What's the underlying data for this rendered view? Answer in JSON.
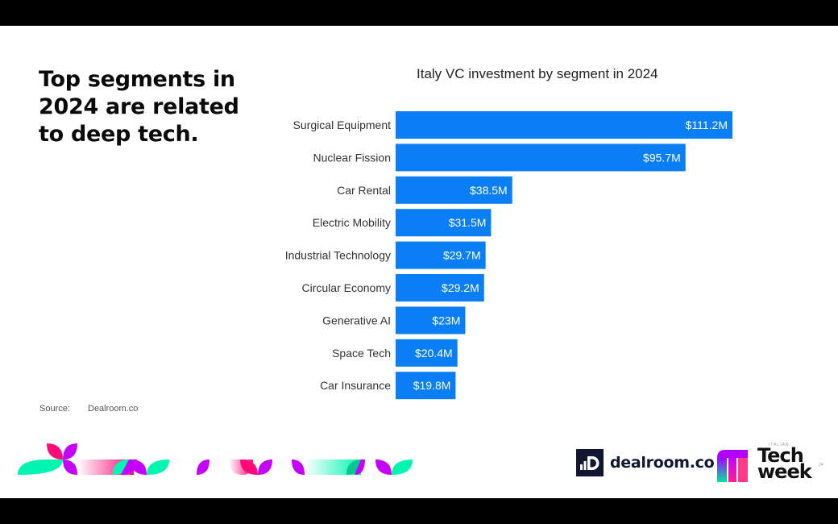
{
  "headline": "Top segments in 2024 are related to deep tech.",
  "source": {
    "label": "Source:",
    "value": "Dealroom.co"
  },
  "logos": {
    "dealroom": {
      "text": "dealroom.co",
      "icon": "dealroom-logo-icon"
    },
    "techweek": {
      "line1": "Tech",
      "line2": "week",
      "small_top": "ITALIAN",
      "small_side": "24"
    }
  },
  "colors": {
    "bar": "#0a7ff5",
    "bar_label": "#ffffff",
    "category_label": "#333333",
    "dealroom_navy": "#111633"
  },
  "chart_data": {
    "type": "bar",
    "orientation": "horizontal",
    "title": "Italy VC investment by segment in 2024",
    "xlabel": "",
    "ylabel": "",
    "grid": false,
    "legend": "none",
    "xlim": [
      0,
      111.2
    ],
    "unit": "$M",
    "categories": [
      "Surgical Equipment",
      "Nuclear Fission",
      "Car Rental",
      "Electric Mobility",
      "Industrial Technology",
      "Circular Economy",
      "Generative AI",
      "Space Tech",
      "Car Insurance"
    ],
    "values": [
      111.2,
      95.7,
      38.5,
      31.5,
      29.7,
      29.2,
      23,
      20.4,
      19.8
    ],
    "data_labels": [
      "$111.2M",
      "$95.7M",
      "$38.5M",
      "$31.5M",
      "$29.7M",
      "$29.2M",
      "$23M",
      "$20.4M",
      "$19.8M"
    ]
  }
}
